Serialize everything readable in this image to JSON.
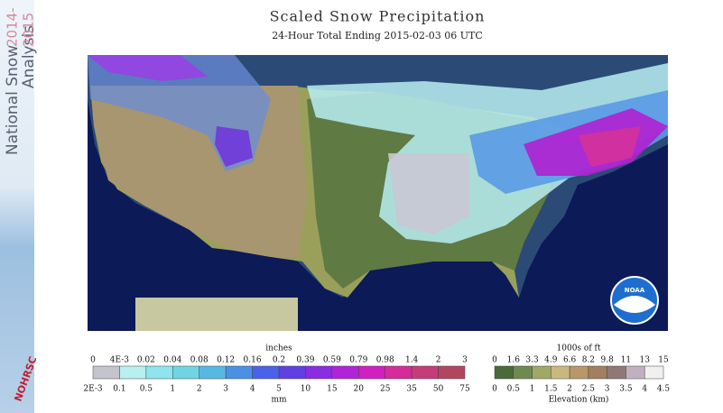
{
  "sidebar": {
    "line1": "National Snow",
    "line2": "Analysis",
    "year1": "2014-",
    "year2": "2015",
    "logo": "NOHRSC"
  },
  "header": {
    "title": "Scaled Snow Precipitation",
    "subtitle": "24-Hour Total Ending 2015-02-03 06 UTC"
  },
  "map": {
    "logo": "NOAA"
  },
  "precip_legend": {
    "unit_top": "inches",
    "unit_bottom": "mm",
    "top_labels": [
      "0",
      "4E-3",
      "0.02",
      "0.04",
      "0.08",
      "0.12",
      "0.16",
      "0.2",
      "0.39",
      "0.59",
      "0.79",
      "0.98",
      "1.4",
      "2",
      "3"
    ],
    "bottom_labels": [
      "2E-3",
      "0.1",
      "0.5",
      "1",
      "2",
      "3",
      "4",
      "5",
      "10",
      "15",
      "20",
      "25",
      "35",
      "50",
      "75"
    ],
    "colors": [
      "#c4c4cc",
      "#b8f0f0",
      "#90e4ec",
      "#70d4e4",
      "#58b8e4",
      "#4c90e4",
      "#4a62e8",
      "#6040e0",
      "#8a2ce0",
      "#b024d8",
      "#d020c0",
      "#d42c98",
      "#c43c78",
      "#b04660"
    ]
  },
  "elev_legend": {
    "unit_top": "1000s of ft",
    "unit_bottom": "Elevation (km)",
    "top_labels": [
      "0",
      "1.6",
      "3.3",
      "4.9",
      "6.6",
      "8.2",
      "9.8",
      "11",
      "13",
      "15"
    ],
    "bottom_labels": [
      "0",
      "0.5",
      "1",
      "1.5",
      "2",
      "2.5",
      "3",
      "3.5",
      "4",
      "4.5"
    ],
    "colors": [
      "#4a6a3a",
      "#6e8a50",
      "#a0a868",
      "#c8b880",
      "#b89868",
      "#a08060",
      "#907878",
      "#c0b0c0",
      "#f0f0f0"
    ]
  }
}
